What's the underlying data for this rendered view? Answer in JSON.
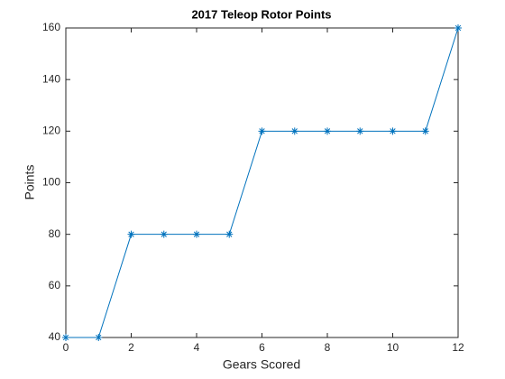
{
  "chart_data": {
    "type": "line",
    "title": "2017 Teleop Rotor Points",
    "x_label": "Gears Scored",
    "y_label": "Points",
    "x": [
      0,
      1,
      2,
      3,
      4,
      5,
      6,
      7,
      8,
      9,
      10,
      11,
      12
    ],
    "series": [
      {
        "color": "#0072bd",
        "marker": "asterisk",
        "values": [
          40,
          40,
          80,
          80,
          80,
          80,
          120,
          120,
          120,
          120,
          120,
          120,
          160
        ]
      }
    ],
    "xlim": [
      0,
      12
    ],
    "xticks": [
      0,
      2,
      4,
      6,
      8,
      10,
      12
    ],
    "ylim": [
      40,
      160
    ],
    "yticks": [
      40,
      60,
      80,
      100,
      120,
      140,
      160
    ],
    "grid": false
  }
}
